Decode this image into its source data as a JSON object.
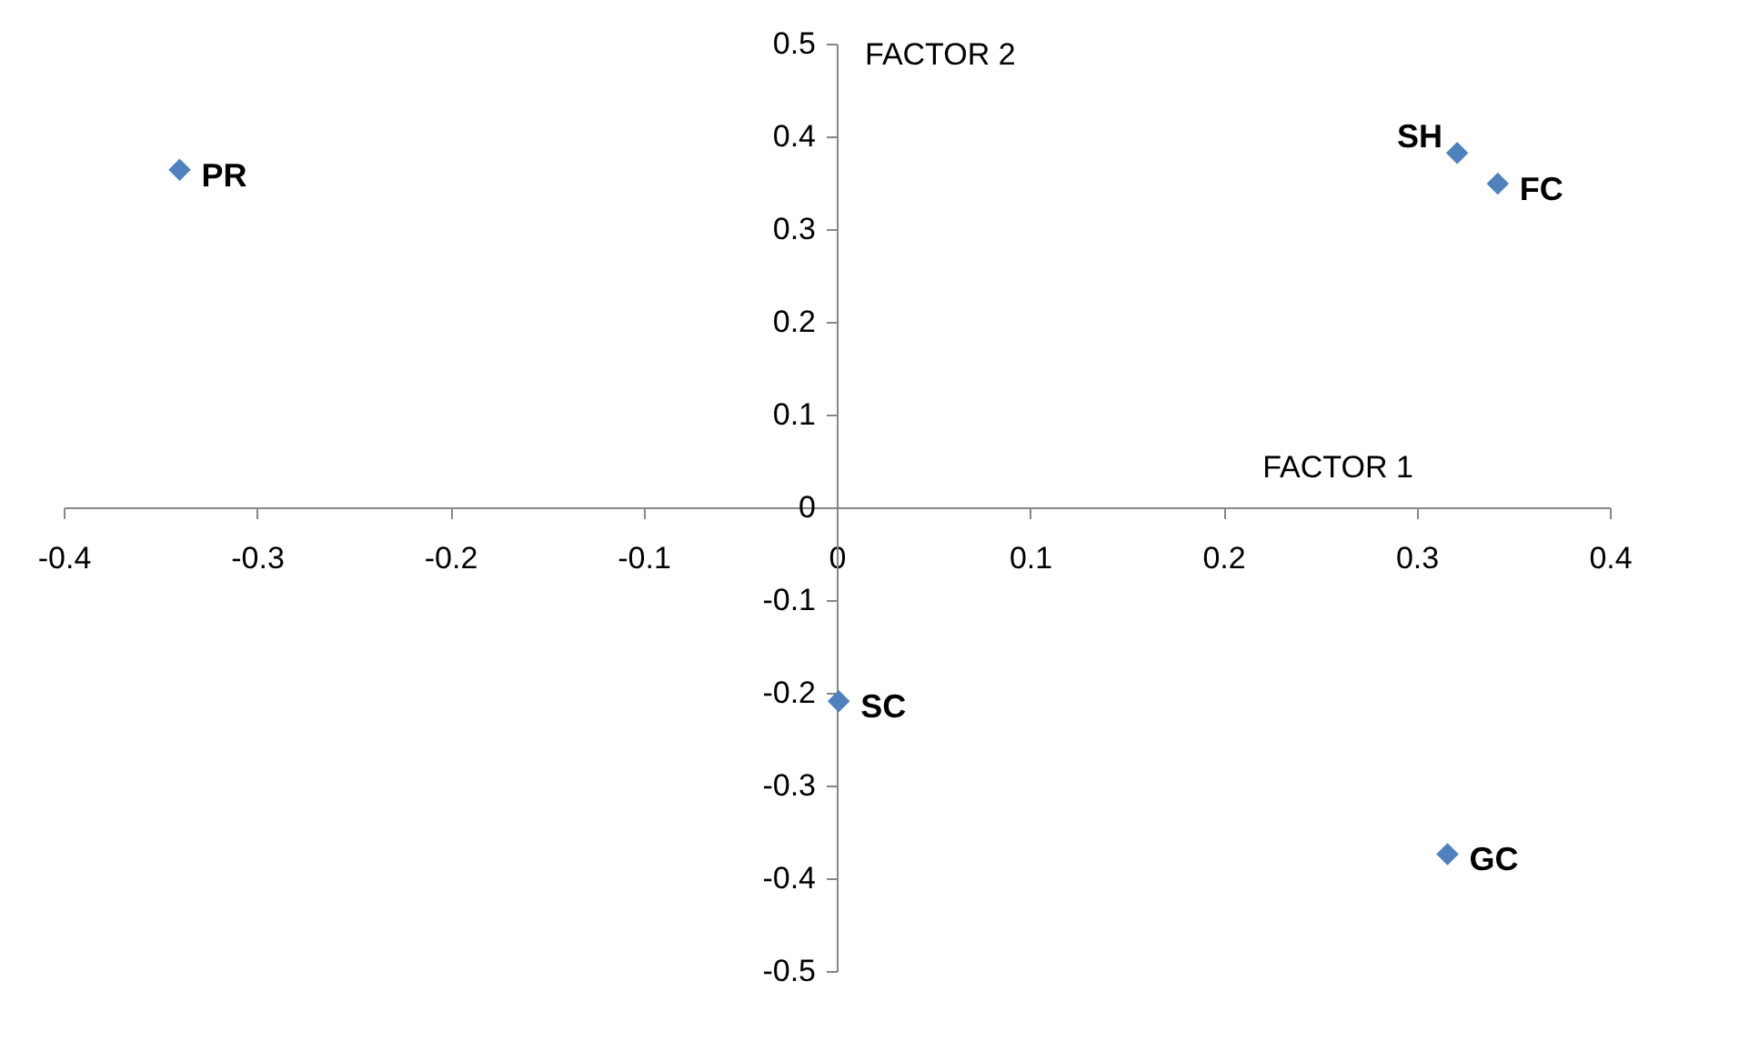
{
  "chart_data": {
    "type": "scatter",
    "xlabel": "FACTOR 1",
    "ylabel": "FACTOR 2",
    "x": [
      -0.34,
      0.321,
      0.342,
      0.001,
      0.316
    ],
    "series": [
      {
        "color": "#4f81bd",
        "values": [
          0.364,
          0.382,
          0.349,
          -0.209,
          -0.374
        ]
      }
    ],
    "annotations": [
      {
        "text": "PR",
        "x": -0.34,
        "y": 0.364
      },
      {
        "text": "SH",
        "x": 0.321,
        "y": 0.382
      },
      {
        "text": "FC",
        "x": 0.342,
        "y": 0.349
      },
      {
        "text": "SC",
        "x": 0.001,
        "y": -0.209
      },
      {
        "text": "GC",
        "x": 0.316,
        "y": -0.374
      }
    ],
    "xlim": [
      -0.4,
      0.4
    ],
    "xticks": [
      -0.4,
      -0.3,
      -0.2,
      -0.1,
      0,
      0.1,
      0.2,
      0.3,
      0.4
    ],
    "ylim": [
      -0.5,
      0.5
    ],
    "yticks": [
      -0.5,
      -0.4,
      -0.3,
      -0.2,
      -0.1,
      0,
      0.1,
      0.2,
      0.3,
      0.4,
      0.5
    ],
    "grid": false,
    "marker": "diamond"
  }
}
